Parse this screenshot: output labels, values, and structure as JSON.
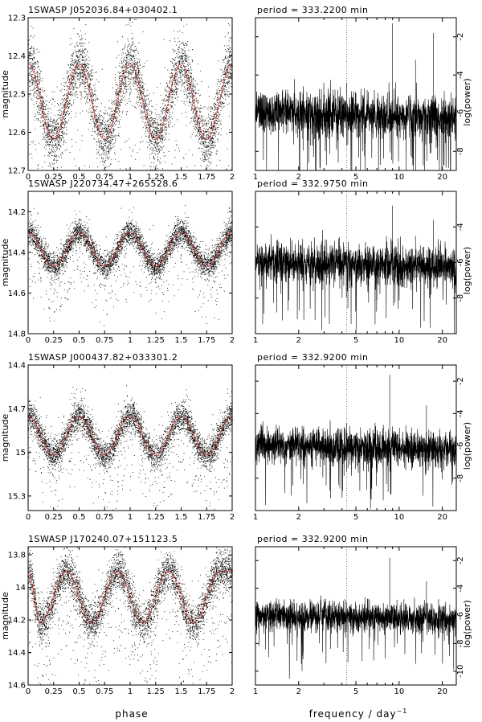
{
  "figure": {
    "xlabel_left": "phase",
    "xlabel_right": "frequency / day",
    "xlabel_right_exp": "−1"
  },
  "colors": {
    "points": "#000000",
    "fold": "#e0312f",
    "axes": "#000000",
    "dotted": "#555555"
  },
  "chart_data": [
    {
      "type": "scatter",
      "title": "1SWASP J052036.84+030402.1",
      "xlabel": "",
      "ylabel": "magnitude",
      "xlim": [
        0,
        2
      ],
      "ylim": [
        12.7,
        12.3
      ],
      "y_inverted": true,
      "xticks": [
        "0",
        "0.25",
        "0.5",
        "0.75",
        "1",
        "1.25",
        "1.5",
        "1.75",
        "2"
      ],
      "yticks": [
        "12.3",
        "12.4",
        "12.5",
        "12.6",
        "12.7"
      ],
      "ytick_values": [
        12.3,
        12.4,
        12.5,
        12.6,
        12.7
      ],
      "series": [
        {
          "values": [
            [
              0.0,
              12.42
            ],
            [
              0.25,
              12.62
            ],
            [
              0.5,
              12.42
            ],
            [
              0.75,
              12.62
            ],
            [
              1.0,
              12.42
            ],
            [
              1.25,
              12.62
            ],
            [
              1.5,
              12.42
            ],
            [
              1.75,
              12.62
            ],
            [
              2.0,
              12.42
            ]
          ]
        }
      ]
    },
    {
      "type": "line",
      "title": "period = 333.2200 min",
      "xlabel": "",
      "ylabel": "log(power)",
      "xscale": "log",
      "xlim": [
        1,
        25
      ],
      "ylim": [
        -9,
        -1
      ],
      "xticks": [
        "1",
        "2",
        "5",
        "10",
        "20"
      ],
      "xtick_values": [
        1,
        2,
        5,
        10,
        20
      ],
      "yticks": [
        "-2",
        "-4",
        "-6",
        "-8"
      ],
      "ytick_values": [
        -2,
        -4,
        -6,
        -8
      ],
      "series": [
        {
          "values": [
            [
              9.0,
              -1.3
            ],
            [
              17.3,
              -1.8
            ],
            [
              13.0,
              -3.2
            ],
            [
              4.3,
              -4.4
            ]
          ]
        }
      ]
    },
    {
      "type": "scatter",
      "title": "1SWASP J220734.47+265528.6",
      "xlabel": "",
      "ylabel": "magnitude",
      "xlim": [
        0,
        2
      ],
      "ylim": [
        14.8,
        14.1
      ],
      "y_inverted": true,
      "xticks": [
        "0",
        "0.25",
        "0.5",
        "0.75",
        "1",
        "1.25",
        "1.5",
        "1.75",
        "2"
      ],
      "yticks": [
        "14.2",
        "14.4",
        "14.6",
        "14.8"
      ],
      "ytick_values": [
        14.2,
        14.4,
        14.6,
        14.8
      ],
      "series": [
        {
          "values": [
            [
              0.0,
              14.3
            ],
            [
              0.25,
              14.47
            ],
            [
              0.5,
              14.3
            ],
            [
              0.75,
              14.47
            ],
            [
              1.0,
              14.3
            ],
            [
              1.25,
              14.47
            ],
            [
              1.5,
              14.3
            ],
            [
              1.75,
              14.47
            ],
            [
              2.0,
              14.3
            ]
          ]
        }
      ]
    },
    {
      "type": "line",
      "title": "period = 332.9750 min",
      "xlabel": "",
      "ylabel": "log(power)",
      "xscale": "log",
      "xlim": [
        1,
        25
      ],
      "ylim": [
        -10,
        -2
      ],
      "xticks": [
        "1",
        "2",
        "5",
        "10",
        "20"
      ],
      "xtick_values": [
        1,
        2,
        5,
        10,
        20
      ],
      "yticks": [
        "-4",
        "-6",
        "-8"
      ],
      "ytick_values": [
        -4,
        -6,
        -8
      ],
      "series": [
        {
          "values": [
            [
              9.0,
              -2.8
            ],
            [
              17.3,
              -3.6
            ],
            [
              13.0,
              -4.5
            ]
          ]
        }
      ]
    },
    {
      "type": "scatter",
      "title": "1SWASP J000437.82+033301.2",
      "xlabel": "",
      "ylabel": "magnitude",
      "xlim": [
        0,
        2
      ],
      "ylim": [
        15.4,
        14.4
      ],
      "y_inverted": true,
      "xticks": [
        "0",
        "0.25",
        "0.5",
        "0.75",
        "1",
        "1.25",
        "1.5",
        "1.75",
        "2"
      ],
      "yticks": [
        "14.4",
        "14.7",
        "15",
        "15.3"
      ],
      "ytick_values": [
        14.4,
        14.7,
        15.0,
        15.3
      ],
      "series": [
        {
          "values": [
            [
              0.0,
              14.75
            ],
            [
              0.25,
              15.02
            ],
            [
              0.5,
              14.75
            ],
            [
              0.75,
              15.02
            ],
            [
              1.0,
              14.75
            ],
            [
              1.25,
              15.02
            ],
            [
              1.5,
              14.75
            ],
            [
              1.75,
              15.02
            ],
            [
              2.0,
              14.75
            ]
          ]
        }
      ]
    },
    {
      "type": "line",
      "title": "period = 332.9200 min",
      "xlabel": "",
      "ylabel": "log(power)",
      "xscale": "log",
      "xlim": [
        1,
        25
      ],
      "ylim": [
        -10,
        -1
      ],
      "xticks": [
        "1",
        "2",
        "5",
        "10",
        "20"
      ],
      "xtick_values": [
        1,
        2,
        5,
        10,
        20
      ],
      "yticks": [
        "-2",
        "-4",
        "-6",
        "-8"
      ],
      "ytick_values": [
        -2,
        -4,
        -6,
        -8
      ],
      "series": [
        {
          "values": [
            [
              8.6,
              -1.6
            ],
            [
              15.5,
              -3.5
            ],
            [
              4.3,
              -4.6
            ]
          ]
        }
      ]
    },
    {
      "type": "scatter",
      "title": "1SWASP J170240.07+151123.5",
      "xlabel": "",
      "ylabel": "magnitude",
      "xlim": [
        0,
        2
      ],
      "ylim": [
        14.6,
        13.75
      ],
      "y_inverted": true,
      "xticks": [
        "0",
        "0.25",
        "0.5",
        "0.75",
        "1",
        "1.25",
        "1.5",
        "1.75",
        "2"
      ],
      "yticks": [
        "13.8",
        "14",
        "14.2",
        "14.4",
        "14.6"
      ],
      "ytick_values": [
        13.8,
        14.0,
        14.2,
        14.4,
        14.6
      ],
      "series": [
        {
          "values": [
            [
              0.0,
              13.9
            ],
            [
              0.12,
              14.22
            ],
            [
              0.38,
              13.9
            ],
            [
              0.62,
              14.22
            ],
            [
              0.88,
              13.9
            ],
            [
              1.12,
              14.22
            ],
            [
              1.38,
              13.9
            ],
            [
              1.62,
              14.22
            ],
            [
              1.88,
              13.9
            ]
          ]
        }
      ]
    },
    {
      "type": "line",
      "title": "period = 332.9200 min",
      "xlabel": "",
      "ylabel": "log(power)",
      "xscale": "log",
      "xlim": [
        1,
        25
      ],
      "ylim": [
        -11,
        -1
      ],
      "xticks": [
        "1",
        "2",
        "5",
        "10",
        "20"
      ],
      "xtick_values": [
        1,
        2,
        5,
        10,
        20
      ],
      "yticks": [
        "-2",
        "-4",
        "-6",
        "-8",
        "-10"
      ],
      "ytick_values": [
        -2,
        -4,
        -6,
        -8,
        -10
      ],
      "series": [
        {
          "values": [
            [
              8.6,
              -1.8
            ],
            [
              15.5,
              -3.5
            ],
            [
              4.3,
              -5.0
            ]
          ]
        }
      ]
    }
  ]
}
